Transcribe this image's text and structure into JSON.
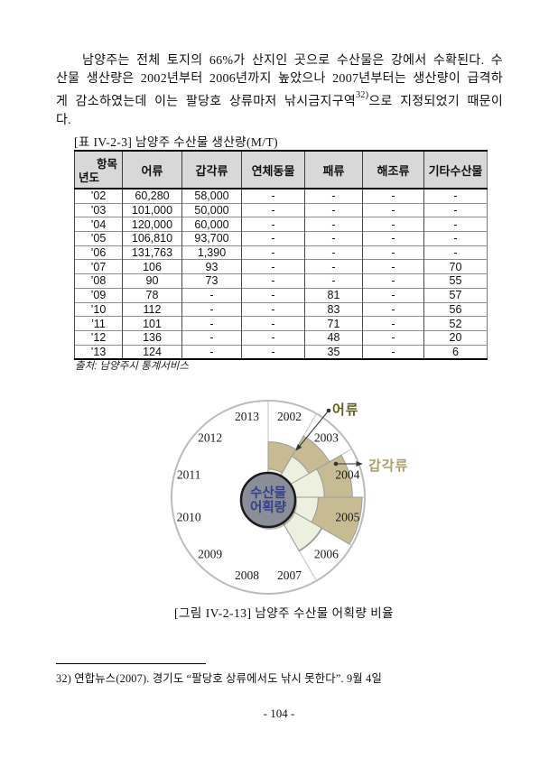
{
  "document": {
    "paragraph": {
      "part1": "남양주는 전체 토지의 66%가 산지인 곳으로 수산물은 강에서 수확된다. 수산물 생산량은 2002년부터 2006년까지 높았으나 2007년부터는 생산량이 급격하게 감소하였는데 이는 팔당호 상류마저 낚시금지구역",
      "fn_marker": "32)",
      "part2": "으로 지정되었기 때문이다."
    },
    "table_caption": "[표 IV-2-3] 남양주 수산물 생산량(M/T)",
    "source_note": "출처: 남양주시 통계서비스",
    "figure_caption": "[그림 IV-2-13] 남양주 수산물 어획량 비율",
    "footnote": "32) 연합뉴스(2007). 경기도 “팔당호 상류에서도 낚시 못한다”. 9월 4일",
    "page_number": "- 104 -"
  },
  "table": {
    "corner": {
      "top": "항목",
      "bottom": "년도"
    },
    "columns": [
      "어류",
      "갑각류",
      "연체동물",
      "패류",
      "해조류",
      "기타수산물"
    ],
    "rows": [
      {
        "year": "’02",
        "cells": [
          "60,280",
          "58,000",
          "-",
          "-",
          "-",
          "-"
        ]
      },
      {
        "year": "’03",
        "cells": [
          "101,000",
          "50,000",
          "-",
          "-",
          "-",
          "-"
        ]
      },
      {
        "year": "’04",
        "cells": [
          "120,000",
          "60,000",
          "-",
          "-",
          "-",
          "-"
        ]
      },
      {
        "year": "’05",
        "cells": [
          "106,810",
          "93,700",
          "-",
          "-",
          "-",
          "-"
        ]
      },
      {
        "year": "’06",
        "cells": [
          "131,763",
          "1,390",
          "-",
          "-",
          "-",
          "-"
        ]
      },
      {
        "year": "’07",
        "cells": [
          "106",
          "93",
          "-",
          "-",
          "-",
          "70"
        ]
      },
      {
        "year": "’08",
        "cells": [
          "90",
          "73",
          "-",
          "-",
          "-",
          "55"
        ]
      },
      {
        "year": "’09",
        "cells": [
          "78",
          "-",
          "-",
          "81",
          "-",
          "57"
        ]
      },
      {
        "year": "’10",
        "cells": [
          "112",
          "-",
          "-",
          "83",
          "-",
          "56"
        ]
      },
      {
        "year": "’11",
        "cells": [
          "101",
          "-",
          "-",
          "71",
          "-",
          "52"
        ]
      },
      {
        "year": "’12",
        "cells": [
          "136",
          "-",
          "-",
          "48",
          "-",
          "20"
        ]
      },
      {
        "year": "’13",
        "cells": [
          "124",
          "-",
          "-",
          "35",
          "-",
          "6"
        ]
      }
    ]
  },
  "chart_data": {
    "type": "rose",
    "title": "남양주 수산물 어획량 비율",
    "unit": "M/T",
    "center_label_lines": [
      "수산물",
      "어획량"
    ],
    "categories": [
      "2002",
      "2003",
      "2004",
      "2005",
      "2006",
      "2007",
      "2008",
      "2009",
      "2010",
      "2011",
      "2012",
      "2013"
    ],
    "series": [
      {
        "name": "어류",
        "color": "#eef0df",
        "label_color": "#5c611e",
        "values": [
          60280,
          101000,
          120000,
          106810,
          131763,
          106,
          90,
          78,
          112,
          101,
          136,
          124
        ]
      },
      {
        "name": "갑각류",
        "color": "#c7bb93",
        "label_color": "#ab9f6a",
        "values": [
          58000,
          50000,
          60000,
          93700,
          1390,
          93,
          73,
          0,
          0,
          0,
          0,
          0
        ]
      }
    ],
    "layout_hint": {
      "start": "12-oclock",
      "direction": "clockwise",
      "sector_deg": 30,
      "max_total": 200510
    },
    "colors": {
      "outer_ring": "#bcbcbc",
      "wedge_stroke": "#9aa096",
      "center_fill": "#8a8e98",
      "center_stroke": "#1b1b1b",
      "center_text": "#32418a",
      "leader_line": "#333333"
    }
  }
}
